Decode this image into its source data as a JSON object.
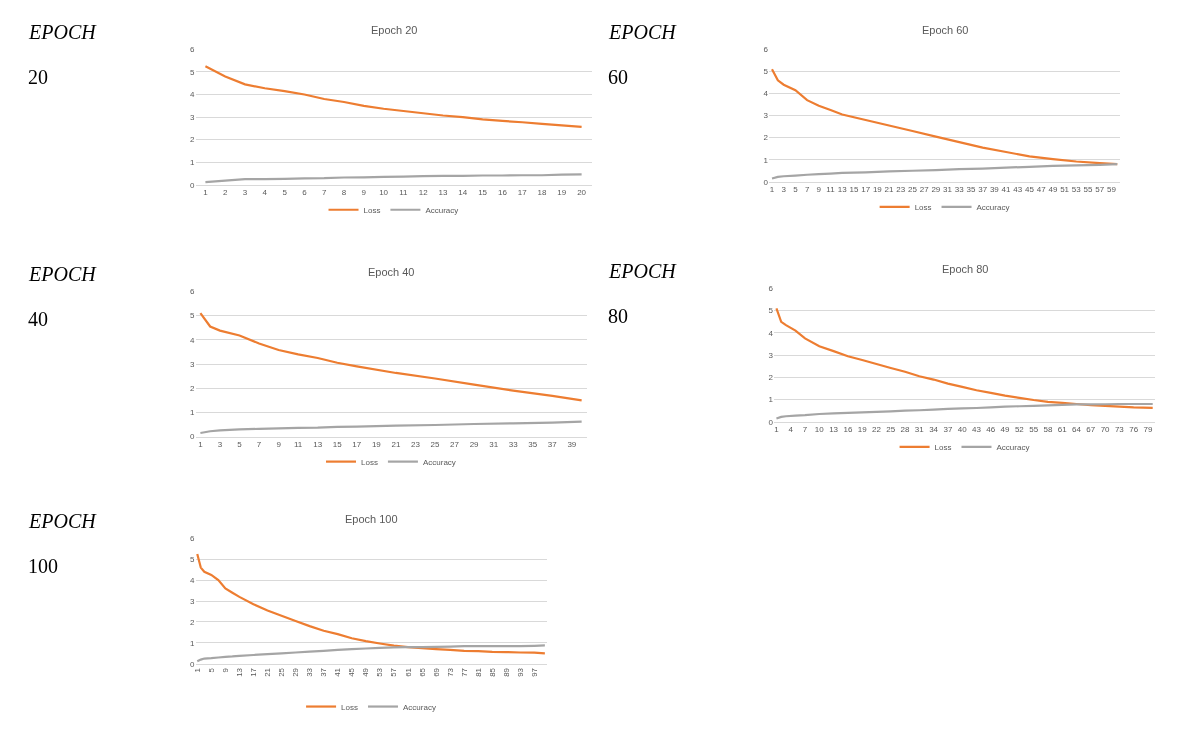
{
  "chart_data": [
    {
      "type": "line",
      "title": "Epoch 20",
      "annotations": [
        "EPOCH",
        "20"
      ],
      "xlim": [
        0.5,
        20.5
      ],
      "xticks": [
        1,
        2,
        3,
        4,
        5,
        6,
        7,
        8,
        9,
        10,
        11,
        12,
        13,
        14,
        15,
        16,
        17,
        18,
        19,
        20
      ],
      "ylim": [
        0,
        6
      ],
      "yticks": [
        0,
        1,
        2,
        3,
        4,
        5,
        6
      ],
      "grid": "y",
      "legend": "bottom",
      "marker": "none",
      "line_style": "solid",
      "series": [
        {
          "name": "Loss",
          "color": "#ed7d31",
          "x": [
            1,
            2,
            3,
            4,
            5,
            6,
            7,
            8,
            9,
            10,
            11,
            12,
            13,
            14,
            15,
            16,
            17,
            18,
            19,
            20
          ],
          "values": [
            5.25,
            4.8,
            4.45,
            4.28,
            4.15,
            4.0,
            3.8,
            3.67,
            3.5,
            3.37,
            3.27,
            3.17,
            3.07,
            3.0,
            2.9,
            2.83,
            2.77,
            2.7,
            2.63,
            2.57
          ]
        },
        {
          "name": "Accuracy",
          "color": "#a5a5a5",
          "x": [
            1,
            2,
            3,
            4,
            5,
            6,
            7,
            8,
            9,
            10,
            11,
            12,
            13,
            14,
            15,
            16,
            17,
            18,
            19,
            20
          ],
          "values": [
            0.12,
            0.18,
            0.25,
            0.25,
            0.26,
            0.28,
            0.29,
            0.32,
            0.33,
            0.35,
            0.36,
            0.38,
            0.39,
            0.39,
            0.41,
            0.41,
            0.42,
            0.42,
            0.45,
            0.46
          ]
        }
      ]
    },
    {
      "type": "line",
      "title": "Epoch 60",
      "annotations": [
        "EPOCH",
        "60"
      ],
      "xlim": [
        0.5,
        60.5
      ],
      "xticks": [
        1,
        3,
        5,
        7,
        9,
        11,
        13,
        15,
        17,
        19,
        21,
        23,
        25,
        27,
        29,
        31,
        33,
        35,
        37,
        39,
        41,
        43,
        45,
        47,
        49,
        51,
        53,
        55,
        57,
        59
      ],
      "ylim": [
        0,
        6
      ],
      "yticks": [
        0,
        1,
        2,
        3,
        4,
        5,
        6
      ],
      "grid": "y",
      "legend": "bottom",
      "marker": "none",
      "line_style": "solid",
      "series": [
        {
          "name": "Loss",
          "color": "#ed7d31",
          "x": [
            1,
            2,
            3,
            5,
            7,
            9,
            11,
            13,
            17,
            21,
            25,
            29,
            33,
            37,
            41,
            45,
            49,
            53,
            57,
            60
          ],
          "values": [
            5.1,
            4.6,
            4.4,
            4.15,
            3.7,
            3.45,
            3.25,
            3.05,
            2.8,
            2.55,
            2.3,
            2.05,
            1.8,
            1.55,
            1.35,
            1.15,
            1.03,
            0.92,
            0.85,
            0.8
          ]
        },
        {
          "name": "Accuracy",
          "color": "#a5a5a5",
          "x": [
            1,
            2,
            3,
            5,
            7,
            9,
            11,
            13,
            17,
            21,
            25,
            29,
            33,
            37,
            41,
            45,
            49,
            53,
            57,
            60
          ],
          "values": [
            0.15,
            0.22,
            0.25,
            0.28,
            0.32,
            0.35,
            0.37,
            0.4,
            0.43,
            0.47,
            0.5,
            0.53,
            0.57,
            0.6,
            0.64,
            0.68,
            0.72,
            0.74,
            0.77,
            0.8
          ]
        }
      ]
    },
    {
      "type": "line",
      "title": "Epoch 40",
      "annotations": [
        "EPOCH",
        "40"
      ],
      "xlim": [
        0.5,
        40.5
      ],
      "xticks": [
        1,
        3,
        5,
        7,
        9,
        11,
        13,
        15,
        17,
        19,
        21,
        23,
        25,
        27,
        29,
        31,
        33,
        35,
        37,
        39
      ],
      "ylim": [
        0,
        6
      ],
      "yticks": [
        0,
        1,
        2,
        3,
        4,
        5,
        6
      ],
      "grid": "y",
      "legend": "bottom",
      "marker": "none",
      "line_style": "solid",
      "series": [
        {
          "name": "Loss",
          "color": "#ed7d31",
          "x": [
            1,
            2,
            3,
            5,
            7,
            9,
            11,
            13,
            15,
            17,
            21,
            25,
            29,
            33,
            37,
            40
          ],
          "values": [
            5.1,
            4.55,
            4.38,
            4.18,
            3.85,
            3.58,
            3.4,
            3.25,
            3.05,
            2.9,
            2.63,
            2.4,
            2.15,
            1.9,
            1.68,
            1.5
          ]
        },
        {
          "name": "Accuracy",
          "color": "#a5a5a5",
          "x": [
            1,
            2,
            3,
            5,
            7,
            9,
            11,
            13,
            15,
            17,
            21,
            25,
            29,
            33,
            37,
            40
          ],
          "values": [
            0.15,
            0.22,
            0.26,
            0.3,
            0.32,
            0.34,
            0.36,
            0.37,
            0.4,
            0.41,
            0.45,
            0.48,
            0.52,
            0.55,
            0.58,
            0.62
          ]
        }
      ]
    },
    {
      "type": "line",
      "title": "Epoch 80",
      "annotations": [
        "EPOCH",
        "80"
      ],
      "xlim": [
        0.5,
        80.5
      ],
      "xticks": [
        1,
        4,
        7,
        10,
        13,
        16,
        19,
        22,
        25,
        28,
        31,
        34,
        37,
        40,
        43,
        46,
        49,
        52,
        55,
        58,
        61,
        64,
        67,
        70,
        73,
        76,
        79
      ],
      "ylim": [
        0,
        6
      ],
      "yticks": [
        0,
        1,
        2,
        3,
        4,
        5,
        6
      ],
      "grid": "y",
      "legend": "bottom",
      "marker": "none",
      "line_style": "solid",
      "series": [
        {
          "name": "Loss",
          "color": "#ed7d31",
          "x": [
            1,
            2,
            3,
            5,
            7,
            10,
            13,
            16,
            19,
            22,
            25,
            28,
            31,
            34,
            37,
            40,
            43,
            46,
            49,
            52,
            55,
            58,
            61,
            64,
            67,
            70,
            73,
            76,
            80
          ],
          "values": [
            5.1,
            4.5,
            4.35,
            4.1,
            3.75,
            3.4,
            3.18,
            2.95,
            2.78,
            2.6,
            2.42,
            2.25,
            2.05,
            1.9,
            1.72,
            1.57,
            1.42,
            1.3,
            1.18,
            1.08,
            0.98,
            0.9,
            0.85,
            0.8,
            0.75,
            0.72,
            0.68,
            0.65,
            0.63
          ]
        },
        {
          "name": "Accuracy",
          "color": "#a5a5a5",
          "x": [
            1,
            2,
            3,
            5,
            7,
            10,
            13,
            16,
            19,
            22,
            25,
            28,
            31,
            34,
            37,
            40,
            43,
            46,
            49,
            52,
            55,
            58,
            61,
            64,
            67,
            70,
            73,
            76,
            80
          ],
          "values": [
            0.15,
            0.22,
            0.25,
            0.28,
            0.3,
            0.35,
            0.38,
            0.4,
            0.42,
            0.45,
            0.47,
            0.5,
            0.52,
            0.55,
            0.58,
            0.6,
            0.62,
            0.65,
            0.68,
            0.7,
            0.72,
            0.74,
            0.76,
            0.78,
            0.78,
            0.79,
            0.8,
            0.8,
            0.8
          ]
        }
      ]
    },
    {
      "type": "line",
      "title": "Epoch 100",
      "annotations": [
        "EPOCH",
        "100"
      ],
      "xlim": [
        0.5,
        100.5
      ],
      "xticks": [
        1,
        5,
        9,
        13,
        17,
        21,
        25,
        29,
        33,
        37,
        41,
        45,
        49,
        53,
        57,
        61,
        65,
        69,
        73,
        77,
        81,
        85,
        89,
        93,
        97
      ],
      "ylim": [
        0,
        6
      ],
      "yticks": [
        0,
        1,
        2,
        3,
        4,
        5,
        6
      ],
      "grid": "y",
      "legend": "bottom",
      "marker": "none",
      "line_style": "solid",
      "series": [
        {
          "name": "Loss",
          "color": "#ed7d31",
          "x": [
            1,
            2,
            3,
            5,
            7,
            9,
            11,
            13,
            17,
            21,
            25,
            29,
            33,
            37,
            41,
            45,
            49,
            53,
            57,
            61,
            65,
            69,
            73,
            77,
            81,
            85,
            89,
            93,
            97,
            100
          ],
          "values": [
            5.25,
            4.6,
            4.4,
            4.25,
            4.0,
            3.6,
            3.4,
            3.2,
            2.85,
            2.55,
            2.3,
            2.05,
            1.8,
            1.58,
            1.42,
            1.22,
            1.08,
            0.97,
            0.87,
            0.8,
            0.75,
            0.7,
            0.66,
            0.62,
            0.6,
            0.57,
            0.56,
            0.54,
            0.53,
            0.5
          ]
        },
        {
          "name": "Accuracy",
          "color": "#a5a5a5",
          "x": [
            1,
            2,
            3,
            5,
            7,
            9,
            11,
            13,
            17,
            21,
            25,
            29,
            33,
            37,
            41,
            45,
            49,
            53,
            57,
            61,
            65,
            69,
            73,
            77,
            81,
            85,
            89,
            93,
            97,
            100
          ],
          "values": [
            0.12,
            0.2,
            0.25,
            0.27,
            0.3,
            0.33,
            0.35,
            0.38,
            0.42,
            0.46,
            0.5,
            0.54,
            0.58,
            0.62,
            0.66,
            0.7,
            0.73,
            0.76,
            0.78,
            0.8,
            0.8,
            0.81,
            0.82,
            0.84,
            0.84,
            0.84,
            0.84,
            0.84,
            0.86,
            0.88
          ]
        }
      ]
    }
  ]
}
